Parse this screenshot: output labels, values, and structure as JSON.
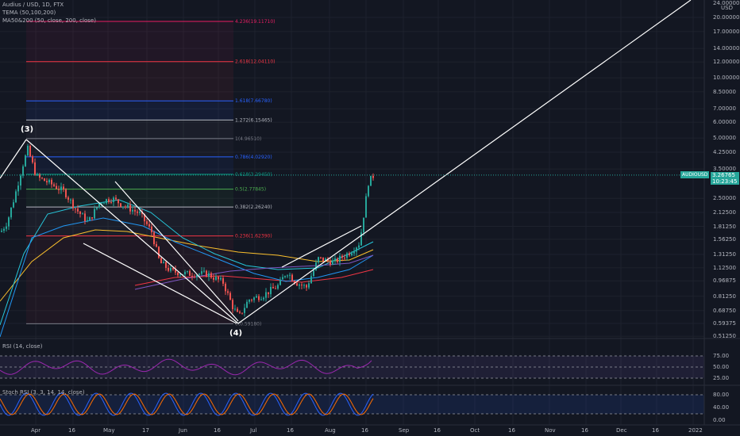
{
  "legend": {
    "symbol": "Audius / USD, 1D, FTX",
    "tema": "TEMA (50,100,200)",
    "ma": "MA50&200 (50, close, 200, close)",
    "rsi": "RSI (14, close)",
    "stoch": "Stoch RSI (3, 3, 14, 14, close)"
  },
  "price_scale": {
    "currency": "USD",
    "top_label": "24.00000",
    "ticks": [
      "20.00000",
      "17.00000",
      "14.00000",
      "12.00000",
      "10.00000",
      "8.50000",
      "7.00000",
      "6.00000",
      "5.00000",
      "4.25000",
      "3.50000",
      "2.50000",
      "2.12500",
      "1.81250",
      "1.56250",
      "1.31250",
      "1.12500",
      "0.96875",
      "0.81250",
      "0.68750",
      "0.59375",
      "0.51250"
    ],
    "current_symbol": "AUDIOUSD",
    "current_price": "3.26765",
    "countdown": "10:23:45"
  },
  "rsi_scale": [
    "75.00",
    "50.00",
    "25.00"
  ],
  "stoch_scale": [
    "80.00",
    "40.00",
    "0.00"
  ],
  "time_axis": [
    "Apr",
    "16",
    "May",
    "17",
    "Jun",
    "16",
    "Jul",
    "16",
    "Aug",
    "16",
    "Sep",
    "16",
    "Oct",
    "16",
    "Nov",
    "16",
    "Dec",
    "16",
    "2022"
  ],
  "fib_levels": [
    {
      "label": "4.236(19.11710)",
      "color": "#e91e63"
    },
    {
      "label": "2.618(12.04110)",
      "color": "#f23645"
    },
    {
      "label": "1.618(7.66780)",
      "color": "#2962ff"
    },
    {
      "label": "1.272(6.15465)",
      "color": "#b2b5be"
    },
    {
      "label": "1(4.96510)",
      "color": "#787b86"
    },
    {
      "label": "0.786(4.02920)",
      "color": "#2962ff"
    },
    {
      "label": "0.618(3.29450)",
      "color": "#089981"
    },
    {
      "label": "0.5(2.77845)",
      "color": "#4caf50"
    },
    {
      "label": "0.382(2.26240)",
      "color": "#b2b5be"
    },
    {
      "label": "0.236(1.62390)",
      "color": "#f23645"
    },
    {
      "label": "0(0.59180)",
      "color": "#787b86"
    }
  ],
  "wave_labels": [
    "(3)",
    "(4)"
  ],
  "colors": {
    "up": "#26a69a",
    "down": "#ef5350",
    "rsi": "#9c27b0",
    "stoch_k": "#2962ff",
    "stoch_d": "#ff6d00",
    "ma50": "#fbc02d",
    "ma200": "#f23645",
    "tema": "#26c6da",
    "price_tag": "#26a69a"
  }
}
